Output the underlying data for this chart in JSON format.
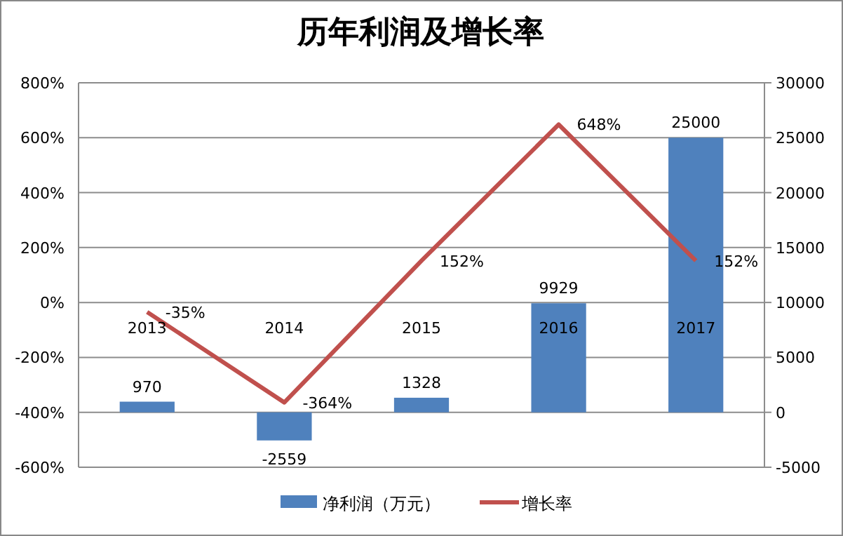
{
  "chart_data": {
    "type": "bar",
    "title": "历年利润及增长率",
    "categories": [
      "2013",
      "2014",
      "2015",
      "2016",
      "2017"
    ],
    "series": [
      {
        "name": "净利润（万元）",
        "axis": "y2",
        "color": "#4f81bd",
        "values": [
          970,
          -2559,
          1328,
          9929,
          25000
        ],
        "data_labels": true
      },
      {
        "name": "增长率",
        "type": "line",
        "color": "#c0504d",
        "values": [
          -35,
          -364,
          152,
          648,
          152
        ],
        "value_labels": [
          "-35%",
          "-364%",
          "152%",
          "648%",
          "152%"
        ],
        "marker": "none"
      }
    ],
    "ylim": [
      -600,
      800
    ],
    "yticks": [
      {
        "value": -600,
        "label": "-600%"
      },
      {
        "value": -400,
        "label": "-400%"
      },
      {
        "value": -200,
        "label": "-200%"
      },
      {
        "value": 0,
        "label": "0%"
      },
      {
        "value": 200,
        "label": "200%"
      },
      {
        "value": 400,
        "label": "400%"
      },
      {
        "value": 600,
        "label": "600%"
      },
      {
        "value": 800,
        "label": "800%"
      }
    ],
    "y2lim": [
      -5000,
      30000
    ],
    "y2ticks": [
      -5000,
      0,
      5000,
      10000,
      15000,
      20000,
      25000,
      30000
    ],
    "grid": "y",
    "legend": "bottom"
  }
}
